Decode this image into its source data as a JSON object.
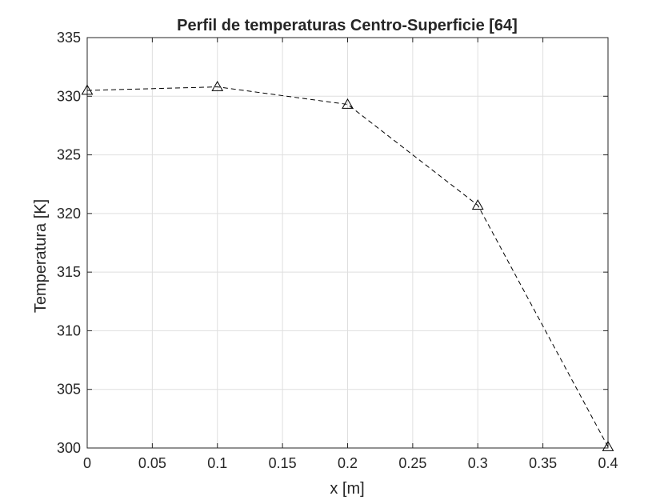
{
  "chart_data": {
    "type": "line",
    "title": "Perfil de temperaturas Centro-Superficie [64]",
    "xlabel": "x [m]",
    "ylabel": "Temperatura [K]",
    "xlim": [
      0,
      0.4
    ],
    "ylim": [
      300,
      335
    ],
    "xticks": [
      0,
      0.05,
      0.1,
      0.15,
      0.2,
      0.25,
      0.3,
      0.35,
      0.4
    ],
    "xtick_labels": [
      "0",
      "0.05",
      "0.1",
      "0.15",
      "0.2",
      "0.25",
      "0.3",
      "0.35",
      "0.4"
    ],
    "yticks": [
      300,
      305,
      310,
      315,
      320,
      325,
      330,
      335
    ],
    "ytick_labels": [
      "300",
      "305",
      "310",
      "315",
      "320",
      "325",
      "330",
      "335"
    ],
    "grid": true,
    "legend": null,
    "series": [
      {
        "x": [
          0,
          0.1,
          0.2,
          0.3,
          0.4
        ],
        "y": [
          330.5,
          330.8,
          329.3,
          320.7,
          300.1
        ],
        "line_style": "dashed",
        "marker": "triangle",
        "color": "#000000"
      }
    ]
  }
}
